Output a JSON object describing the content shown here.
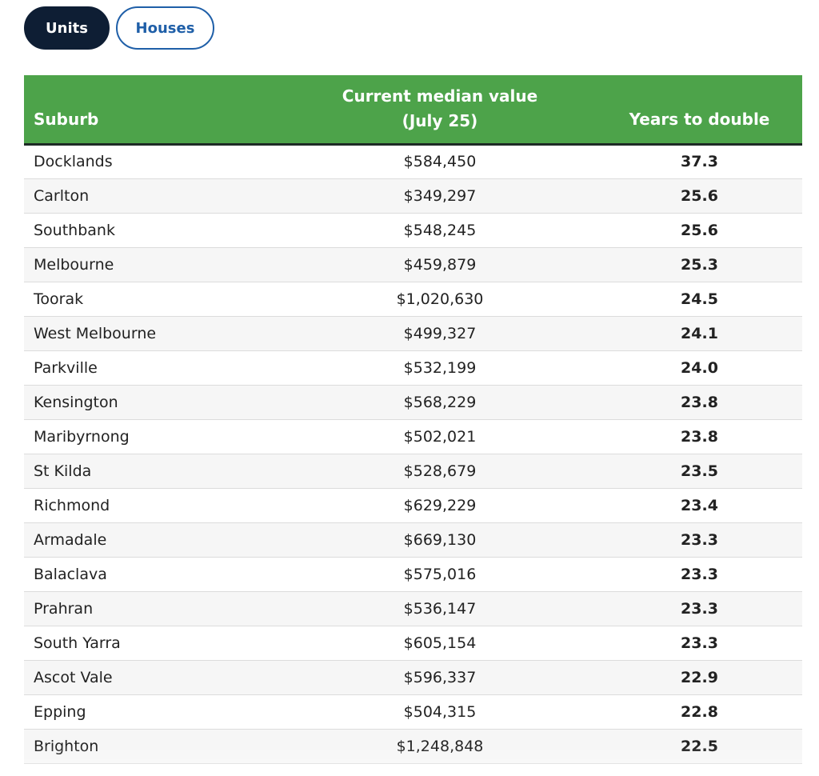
{
  "tabs": [
    {
      "label": "Units",
      "active": true
    },
    {
      "label": "Houses",
      "active": false
    }
  ],
  "table": {
    "headers": {
      "suburb": "Suburb",
      "value": "Current median value (July 25)",
      "years": "Years to double"
    },
    "rows": [
      {
        "suburb": "Docklands",
        "value": "$584,450",
        "years": "37.3"
      },
      {
        "suburb": "Carlton",
        "value": "$349,297",
        "years": "25.6"
      },
      {
        "suburb": "Southbank",
        "value": "$548,245",
        "years": "25.6"
      },
      {
        "suburb": "Melbourne",
        "value": "$459,879",
        "years": "25.3"
      },
      {
        "suburb": "Toorak",
        "value": "$1,020,630",
        "years": "24.5"
      },
      {
        "suburb": "West Melbourne",
        "value": "$499,327",
        "years": "24.1"
      },
      {
        "suburb": "Parkville",
        "value": "$532,199",
        "years": "24.0"
      },
      {
        "suburb": "Kensington",
        "value": "$568,229",
        "years": "23.8"
      },
      {
        "suburb": "Maribyrnong",
        "value": "$502,021",
        "years": "23.8"
      },
      {
        "suburb": "St Kilda",
        "value": "$528,679",
        "years": "23.5"
      },
      {
        "suburb": "Richmond",
        "value": "$629,229",
        "years": "23.4"
      },
      {
        "suburb": "Armadale",
        "value": "$669,130",
        "years": "23.3"
      },
      {
        "suburb": "Balaclava",
        "value": "$575,016",
        "years": "23.3"
      },
      {
        "suburb": "Prahran",
        "value": "$536,147",
        "years": "23.3"
      },
      {
        "suburb": "South Yarra",
        "value": "$605,154",
        "years": "23.3"
      },
      {
        "suburb": "Ascot Vale",
        "value": "$596,337",
        "years": "22.9"
      },
      {
        "suburb": "Epping",
        "value": "$504,315",
        "years": "22.8"
      },
      {
        "suburb": "Brighton",
        "value": "$1,248,848",
        "years": "22.5"
      }
    ]
  },
  "colors": {
    "header_bg": "#4da34a",
    "active_tab_bg": "#0e1e34",
    "inactive_tab_accent": "#1f5fa8"
  }
}
